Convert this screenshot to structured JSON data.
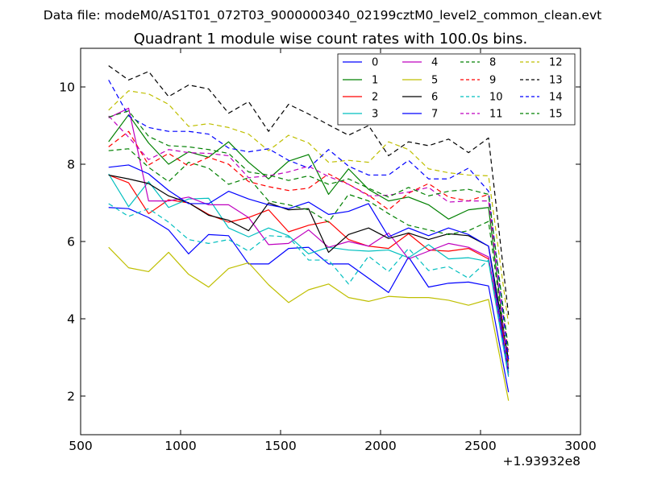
{
  "chart_data": {
    "type": "line",
    "suptitle": "Data file: modeM0/AS1T01_072T03_9000000340_02199cztM0_level2_common_clean.evt",
    "title": "Quadrant 1 module wise count rates with 100.0s bins.",
    "xlabel": "",
    "ylabel": "",
    "x_offset_label": "+1.93932e8",
    "xlim": [
      500,
      3000
    ],
    "ylim": [
      1,
      11
    ],
    "x_ticks": [
      500,
      1000,
      1500,
      2000,
      2500,
      3000
    ],
    "y_ticks": [
      2,
      4,
      6,
      8,
      10
    ],
    "legend_position": "top-right",
    "x": [
      640,
      740,
      840,
      940,
      1040,
      1140,
      1240,
      1340,
      1440,
      1540,
      1640,
      1740,
      1840,
      1940,
      2040,
      2140,
      2240,
      2340,
      2440,
      2540,
      2640
    ],
    "series": [
      {
        "name": "0",
        "color": "#0000ff",
        "dash": "solid",
        "values": [
          6.88,
          6.85,
          6.62,
          6.3,
          5.68,
          6.18,
          6.15,
          5.42,
          5.42,
          5.82,
          5.85,
          5.42,
          5.42,
          5.05,
          4.68,
          5.6,
          4.82,
          4.92,
          4.95,
          4.85,
          2.1
        ]
      },
      {
        "name": "1",
        "color": "#008000",
        "dash": "solid",
        "values": [
          8.58,
          9.28,
          8.55,
          8.0,
          8.32,
          8.18,
          8.58,
          8.05,
          7.62,
          8.08,
          8.25,
          7.22,
          7.88,
          7.35,
          7.05,
          7.15,
          6.95,
          6.58,
          6.82,
          6.88,
          2.7
        ]
      },
      {
        "name": "2",
        "color": "#ff0000",
        "dash": "solid",
        "values": [
          7.72,
          7.52,
          6.72,
          7.08,
          7.0,
          6.7,
          6.5,
          6.62,
          6.82,
          6.25,
          6.42,
          6.52,
          6.05,
          5.88,
          5.82,
          6.2,
          5.78,
          5.75,
          5.82,
          5.55,
          2.9
        ]
      },
      {
        "name": "3",
        "color": "#00bfbf",
        "dash": "solid",
        "values": [
          7.75,
          6.9,
          7.55,
          6.88,
          7.1,
          7.12,
          6.35,
          6.12,
          6.35,
          6.15,
          5.68,
          5.85,
          5.78,
          5.75,
          5.78,
          5.58,
          5.92,
          5.55,
          5.58,
          5.48,
          2.5
        ]
      },
      {
        "name": "4",
        "color": "#bf00bf",
        "dash": "solid",
        "values": [
          9.2,
          9.45,
          7.05,
          7.05,
          7.15,
          6.95,
          6.95,
          6.62,
          5.92,
          5.95,
          6.3,
          5.85,
          6.0,
          5.88,
          6.22,
          5.55,
          5.75,
          5.95,
          5.85,
          5.6,
          2.55
        ]
      },
      {
        "name": "5",
        "color": "#bfbf00",
        "dash": "solid",
        "values": [
          5.85,
          5.32,
          5.22,
          5.72,
          5.15,
          4.82,
          5.3,
          5.45,
          4.88,
          4.42,
          4.75,
          4.9,
          4.55,
          4.45,
          4.58,
          4.55,
          4.55,
          4.48,
          4.35,
          4.5,
          1.88
        ]
      },
      {
        "name": "6",
        "color": "#000000",
        "dash": "solid",
        "values": [
          7.72,
          7.62,
          7.5,
          7.18,
          7.0,
          6.68,
          6.55,
          6.28,
          7.0,
          6.82,
          6.85,
          5.72,
          6.18,
          6.35,
          6.08,
          6.22,
          6.05,
          6.2,
          6.15,
          5.88,
          2.95
        ]
      },
      {
        "name": "7",
        "color": "#0000ff",
        "dash": "solid",
        "values": [
          7.92,
          7.98,
          7.75,
          7.32,
          6.98,
          6.98,
          7.3,
          7.1,
          6.95,
          6.85,
          7.02,
          6.7,
          6.78,
          6.98,
          6.12,
          6.35,
          6.15,
          6.35,
          6.18,
          5.88,
          2.6
        ]
      },
      {
        "name": "8",
        "color": "#008000",
        "dash": "dash",
        "values": [
          8.35,
          8.4,
          7.92,
          7.55,
          8.05,
          7.9,
          7.48,
          7.65,
          7.05,
          6.95,
          6.82,
          6.5,
          7.22,
          7.05,
          6.72,
          6.42,
          6.3,
          6.18,
          6.28,
          6.52,
          2.75
        ]
      },
      {
        "name": "9",
        "color": "#ff0000",
        "dash": "dash",
        "values": [
          8.45,
          8.85,
          7.98,
          8.28,
          7.95,
          8.18,
          8.0,
          7.55,
          7.42,
          7.32,
          7.38,
          7.75,
          7.48,
          7.2,
          6.82,
          7.25,
          7.5,
          7.15,
          7.05,
          7.22,
          3.05
        ]
      },
      {
        "name": "10",
        "color": "#00bfbf",
        "dash": "dash",
        "values": [
          6.98,
          6.65,
          6.85,
          6.5,
          6.05,
          5.95,
          6.05,
          5.75,
          6.15,
          6.12,
          5.52,
          5.52,
          4.9,
          5.62,
          5.22,
          5.82,
          5.25,
          5.35,
          5.05,
          5.52,
          2.55
        ]
      },
      {
        "name": "11",
        "color": "#bf00bf",
        "dash": "dash",
        "values": [
          9.25,
          8.7,
          8.12,
          8.38,
          8.3,
          8.28,
          8.22,
          7.65,
          7.7,
          7.8,
          7.95,
          7.68,
          7.48,
          7.18,
          7.2,
          7.28,
          7.4,
          7.02,
          7.05,
          7.05,
          2.65
        ]
      },
      {
        "name": "12",
        "color": "#bfbf00",
        "dash": "dash",
        "values": [
          9.4,
          9.9,
          9.82,
          9.55,
          8.98,
          9.05,
          8.95,
          8.78,
          8.35,
          8.75,
          8.55,
          8.05,
          8.1,
          8.05,
          8.58,
          8.38,
          7.88,
          7.78,
          7.72,
          7.7,
          3.85
        ]
      },
      {
        "name": "13",
        "color": "#000000",
        "dash": "dash",
        "values": [
          10.55,
          10.18,
          10.4,
          9.75,
          10.05,
          9.95,
          9.32,
          9.62,
          8.85,
          9.55,
          9.3,
          9.02,
          8.75,
          9.0,
          8.22,
          8.58,
          8.48,
          8.65,
          8.3,
          8.68,
          4.1
        ]
      },
      {
        "name": "14",
        "color": "#0000ff",
        "dash": "dash",
        "values": [
          10.18,
          9.25,
          8.95,
          8.85,
          8.85,
          8.78,
          8.42,
          8.32,
          8.4,
          8.1,
          7.9,
          8.38,
          7.95,
          7.72,
          7.72,
          8.1,
          7.62,
          7.62,
          7.9,
          7.3,
          2.95
        ]
      },
      {
        "name": "15",
        "color": "#008000",
        "dash": "dash",
        "values": [
          9.22,
          9.38,
          8.72,
          8.48,
          8.45,
          8.38,
          8.28,
          7.8,
          7.72,
          7.58,
          7.7,
          7.48,
          7.62,
          7.38,
          7.15,
          7.4,
          7.18,
          7.3,
          7.35,
          7.22,
          3.2
        ]
      }
    ]
  }
}
